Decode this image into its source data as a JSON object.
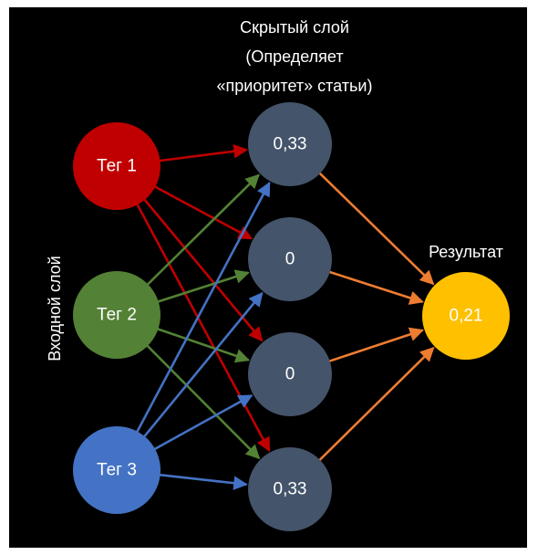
{
  "title": {
    "line1": "Скрытый слой",
    "line2": "(Определяет",
    "line3": "«приоритет» статьи)"
  },
  "input_layer_label": "Входной слой",
  "result_label": "Результат",
  "inputs": [
    {
      "id": "tag1",
      "label": "Тег 1",
      "color": "#c00000"
    },
    {
      "id": "tag2",
      "label": "Тег 2",
      "color": "#538135"
    },
    {
      "id": "tag3",
      "label": "Тег 3",
      "color": "#4472c4"
    }
  ],
  "hidden": [
    {
      "id": "h1",
      "label": "0,33"
    },
    {
      "id": "h2",
      "label": "0"
    },
    {
      "id": "h3",
      "label": "0"
    },
    {
      "id": "h4",
      "label": "0,33"
    }
  ],
  "output": {
    "id": "out",
    "label": "0,21",
    "color": "#ffc000"
  },
  "colors": {
    "background": "#000000",
    "hidden_node": "#44546a",
    "output_edge": "#ed7d31",
    "text": "#ffffff"
  }
}
